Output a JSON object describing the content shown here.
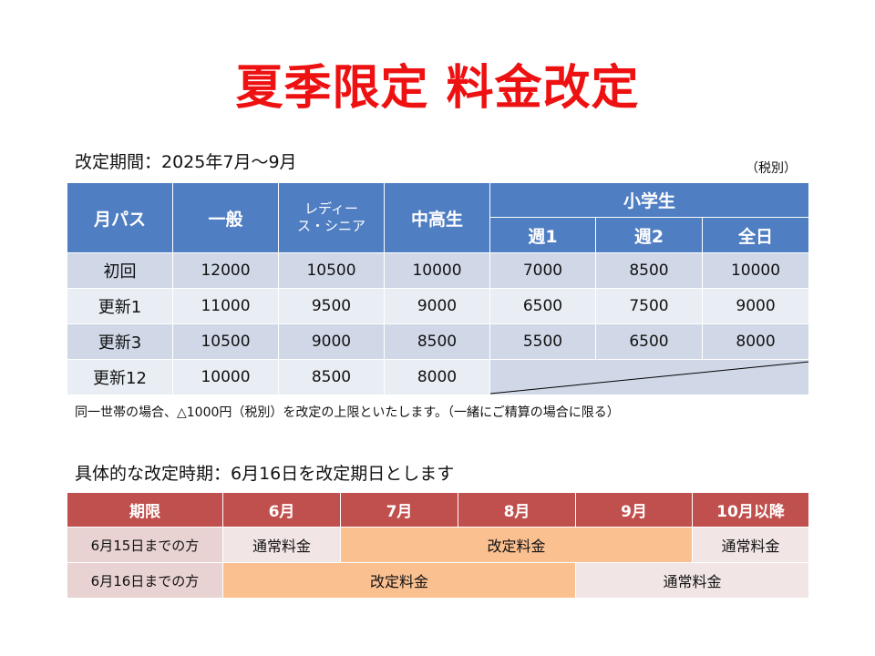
{
  "title": "夏季限定 料金改定",
  "period": "改定期間：2025年7月～9月",
  "tax_note": "（税別）",
  "price_table": {
    "headers": {
      "month_pass": "月パス",
      "general": "一般",
      "ladies_line1": "レディー",
      "ladies_line2": "ス・シニア",
      "junior_high": "中高生",
      "elementary": "小学生",
      "week1": "週1",
      "week2": "週2",
      "all_day": "全日"
    },
    "rows": [
      {
        "label": "初回",
        "values": [
          "12000",
          "10500",
          "10000",
          "7000",
          "8500",
          "10000"
        ]
      },
      {
        "label": "更新1",
        "values": [
          "11000",
          "9500",
          "9000",
          "6500",
          "7500",
          "9000"
        ]
      },
      {
        "label": "更新3",
        "values": [
          "10500",
          "9000",
          "8500",
          "5500",
          "6500",
          "8000"
        ]
      },
      {
        "label": "更新12",
        "values": [
          "10000",
          "8500",
          "8000"
        ]
      }
    ]
  },
  "cap_note": "同一世帯の場合、△1000円（税別）を改定の上限といたします。（一緒にご精算の場合に限る）",
  "timing_title": "具体的な改定時期：6月16日を改定期日とします",
  "timing_table": {
    "headers": [
      "期限",
      "6月",
      "7月",
      "8月",
      "9月",
      "10月以降"
    ],
    "row1": {
      "label": "6月15日までの方",
      "normal_before": "通常料金",
      "revised": "改定料金",
      "normal_after": "通常料金"
    },
    "row2": {
      "label": "6月16日までの方",
      "revised": "改定料金",
      "normal_after": "通常料金"
    }
  },
  "colors": {
    "title": "#ee1111",
    "price_header": "#4f7ec2",
    "timing_header": "#c0504d",
    "revised_fill": "#fac090"
  }
}
